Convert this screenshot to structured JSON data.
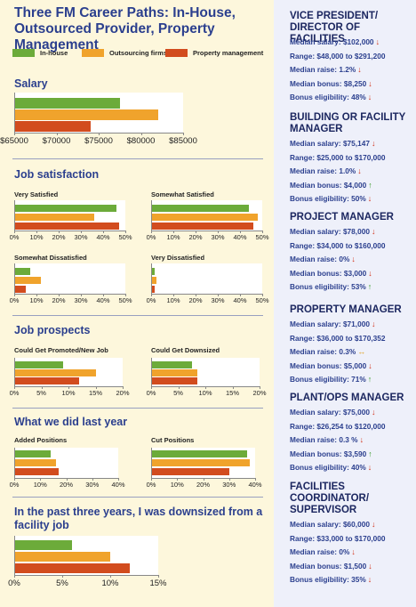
{
  "colors": {
    "in_house": "#6cab3a",
    "outsourcing": "#f0a32c",
    "property": "#d24c1e",
    "title": "#2b3f8e"
  },
  "title": "Three FM Career Paths: In-House, Outsourced Provider, Property Management",
  "legend": [
    "In-house",
    "Outsourcing firms",
    "Property management"
  ],
  "chart_data": [
    {
      "type": "bar",
      "orientation": "horizontal",
      "title": "Salary",
      "series": [
        {
          "name": "In-house",
          "value": 77500
        },
        {
          "name": "Outsourcing firms",
          "value": 82000
        },
        {
          "name": "Property management",
          "value": 74000
        }
      ],
      "xlim": [
        65000,
        85000
      ],
      "ticks": [
        "$65000",
        "$70000",
        "$75000",
        "$80000",
        "$85000"
      ]
    },
    {
      "type": "bar",
      "orientation": "horizontal",
      "section": "Job satisfaction",
      "title": "Very Satisfied",
      "series": [
        {
          "name": "In-house",
          "value": 46
        },
        {
          "name": "Outsourcing firms",
          "value": 36
        },
        {
          "name": "Property management",
          "value": 47
        }
      ],
      "xlim": [
        0,
        50
      ],
      "ticks": [
        "0%",
        "10%",
        "20%",
        "30%",
        "40%",
        "50%"
      ]
    },
    {
      "type": "bar",
      "orientation": "horizontal",
      "section": "Job satisfaction",
      "title": "Somewhat Satisfied",
      "series": [
        {
          "name": "In-house",
          "value": 44
        },
        {
          "name": "Outsourcing firms",
          "value": 48
        },
        {
          "name": "Property management",
          "value": 46
        }
      ],
      "xlim": [
        0,
        50
      ],
      "ticks": [
        "0%",
        "10%",
        "20%",
        "30%",
        "40%",
        "50%"
      ]
    },
    {
      "type": "bar",
      "orientation": "horizontal",
      "section": "Job satisfaction",
      "title": "Somewhat Dissatisfied",
      "series": [
        {
          "name": "In-house",
          "value": 7
        },
        {
          "name": "Outsourcing firms",
          "value": 12
        },
        {
          "name": "Property management",
          "value": 5
        }
      ],
      "xlim": [
        0,
        50
      ],
      "ticks": [
        "0%",
        "10%",
        "20%",
        "30%",
        "40%",
        "50%"
      ]
    },
    {
      "type": "bar",
      "orientation": "horizontal",
      "section": "Job satisfaction",
      "title": "Very Dissatisfied",
      "series": [
        {
          "name": "In-house",
          "value": 1.5
        },
        {
          "name": "Outsourcing firms",
          "value": 2.5
        },
        {
          "name": "Property management",
          "value": 1.5
        }
      ],
      "xlim": [
        0,
        50
      ],
      "ticks": [
        "0%",
        "10%",
        "20%",
        "30%",
        "40%",
        "50%"
      ]
    },
    {
      "type": "bar",
      "orientation": "horizontal",
      "section": "Job prospects",
      "title": "Could Get Promoted/New Job",
      "series": [
        {
          "name": "In-house",
          "value": 9
        },
        {
          "name": "Outsourcing firms",
          "value": 15
        },
        {
          "name": "Property management",
          "value": 12
        }
      ],
      "xlim": [
        0,
        20
      ],
      "ticks": [
        "0%",
        "5%",
        "10%",
        "15%",
        "20%"
      ]
    },
    {
      "type": "bar",
      "orientation": "horizontal",
      "section": "Job prospects",
      "title": "Could Get Downsized",
      "series": [
        {
          "name": "In-house",
          "value": 7.5
        },
        {
          "name": "Outsourcing firms",
          "value": 8.5
        },
        {
          "name": "Property management",
          "value": 8.5
        }
      ],
      "xlim": [
        0,
        20
      ],
      "ticks": [
        "0%",
        "5%",
        "10%",
        "15%",
        "20%"
      ]
    },
    {
      "type": "bar",
      "orientation": "horizontal",
      "section": "What we did last year",
      "title": "Added Positions",
      "series": [
        {
          "name": "In-house",
          "value": 14
        },
        {
          "name": "Outsourcing firms",
          "value": 16
        },
        {
          "name": "Property management",
          "value": 17
        }
      ],
      "xlim": [
        0,
        40
      ],
      "ticks": [
        "0%",
        "10%",
        "20%",
        "30%",
        "40%"
      ]
    },
    {
      "type": "bar",
      "orientation": "horizontal",
      "section": "What we did last year",
      "title": "Cut Positions",
      "series": [
        {
          "name": "In-house",
          "value": 37
        },
        {
          "name": "Outsourcing firms",
          "value": 38
        },
        {
          "name": "Property management",
          "value": 30
        }
      ],
      "xlim": [
        0,
        40
      ],
      "ticks": [
        "0%",
        "10%",
        "20%",
        "30%",
        "40%"
      ]
    },
    {
      "type": "bar",
      "orientation": "horizontal",
      "title": "In the past three years, I was downsized from a facility job",
      "series": [
        {
          "name": "In-house",
          "value": 6
        },
        {
          "name": "Outsourcing firms",
          "value": 10
        },
        {
          "name": "Property management",
          "value": 12
        }
      ],
      "xlim": [
        0,
        15
      ],
      "ticks": [
        "0%",
        "5%",
        "10%",
        "15%"
      ]
    }
  ],
  "jobs": [
    {
      "title": "VICE PRESIDENT/ DIRECTOR OF FACILITIES",
      "lines": [
        {
          "text": "Median salary: $102,000",
          "trend": "down"
        },
        {
          "text": "Range: $48,000 to $291,200",
          "trend": ""
        },
        {
          "text": "Median raise: 1.2%",
          "trend": "down"
        },
        {
          "text": "Median bonus: $8,250",
          "trend": "down"
        },
        {
          "text": "Bonus eligibility: 48%",
          "trend": "down"
        }
      ]
    },
    {
      "title": "BUILDING OR FACILITY MANAGER",
      "lines": [
        {
          "text": "Median salary: $75,147",
          "trend": "down"
        },
        {
          "text": "Range: $25,000 to $170,000",
          "trend": ""
        },
        {
          "text": "Median raise: 1.0%",
          "trend": "down"
        },
        {
          "text": "Median bonus: $4,000",
          "trend": "up"
        },
        {
          "text": "Bonus eligibility: 50%",
          "trend": "down"
        }
      ]
    },
    {
      "title": "PROJECT MANAGER",
      "lines": [
        {
          "text": "Median salary: $78,000",
          "trend": "down"
        },
        {
          "text": "Range: $34,000 to $160,000",
          "trend": ""
        },
        {
          "text": "Median raise: 0%",
          "trend": "down"
        },
        {
          "text": "Median bonus: $3,000",
          "trend": "down"
        },
        {
          "text": "Bonus eligibility: 53%",
          "trend": "up"
        }
      ]
    },
    {
      "title": "PROPERTY MANAGER",
      "lines": [
        {
          "text": "Median salary: $71,000",
          "trend": "down"
        },
        {
          "text": "Range: $36,000 to $170,352",
          "trend": ""
        },
        {
          "text": "Median raise: 0.3%",
          "trend": "flat"
        },
        {
          "text": "Median bonus: $5,000",
          "trend": "down"
        },
        {
          "text": "Bonus eligibility: 71%",
          "trend": "up"
        }
      ]
    },
    {
      "title": "PLANT/OPS MANAGER",
      "lines": [
        {
          "text": "Median salary: $75,000",
          "trend": "down"
        },
        {
          "text": "Range: $26,254 to $120,000",
          "trend": ""
        },
        {
          "text": "Median raise: 0.3 %",
          "trend": "down"
        },
        {
          "text": "Median bonus: $3,590",
          "trend": "up"
        },
        {
          "text": "Bonus eligibility: 40%",
          "trend": "down"
        }
      ]
    },
    {
      "title": "FACILITIES COORDINATOR/ SUPERVISOR",
      "lines": [
        {
          "text": "Median salary: $60,000",
          "trend": "down"
        },
        {
          "text": "Range: $33,000 to $170,000",
          "trend": ""
        },
        {
          "text": "Median raise: 0%",
          "trend": "down"
        },
        {
          "text": "Median bonus: $1,500",
          "trend": "down"
        },
        {
          "text": "Bonus eligibility: 35%",
          "trend": "down"
        }
      ]
    }
  ]
}
